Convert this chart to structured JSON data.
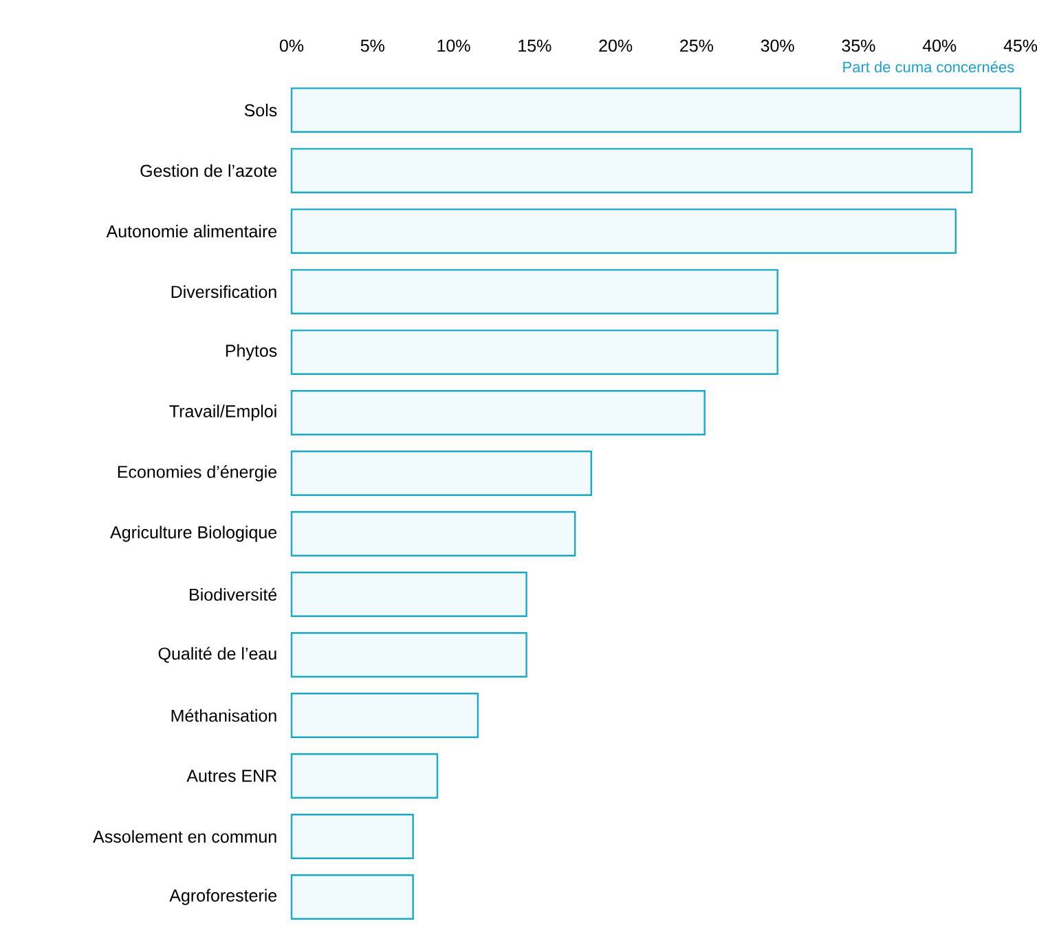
{
  "chart_data": {
    "type": "bar",
    "orientation": "horizontal",
    "categories": [
      "Sols",
      "Gestion de l’azote",
      "Autonomie alimentaire",
      "Diversification",
      "Phytos",
      "Travail/Emploi",
      "Economies d’énergie",
      "Agriculture Biologique",
      "Biodiversité",
      "Qualité de l’eau",
      "Méthanisation",
      "Autres ENR",
      "Assolement en commun",
      "Agroforesterie"
    ],
    "values": [
      45,
      42,
      41,
      30,
      30,
      25.5,
      18.5,
      17.5,
      14.5,
      14.5,
      11.5,
      9,
      7.5,
      7.5
    ],
    "color": "#1aaac8",
    "xlabel": "Part de cuma concernées",
    "xlim": [
      0,
      45
    ],
    "xticks": [
      {
        "value": 0,
        "label": "0%"
      },
      {
        "value": 5,
        "label": "5%"
      },
      {
        "value": 10,
        "label": "10%"
      },
      {
        "value": 15,
        "label": "15%"
      },
      {
        "value": 20,
        "label": "20%"
      },
      {
        "value": 25,
        "label": "25%"
      },
      {
        "value": 30,
        "label": "30%"
      },
      {
        "value": 35,
        "label": "35%"
      },
      {
        "value": 40,
        "label": "40%"
      },
      {
        "value": 45,
        "label": "45%"
      }
    ],
    "grid": false
  }
}
